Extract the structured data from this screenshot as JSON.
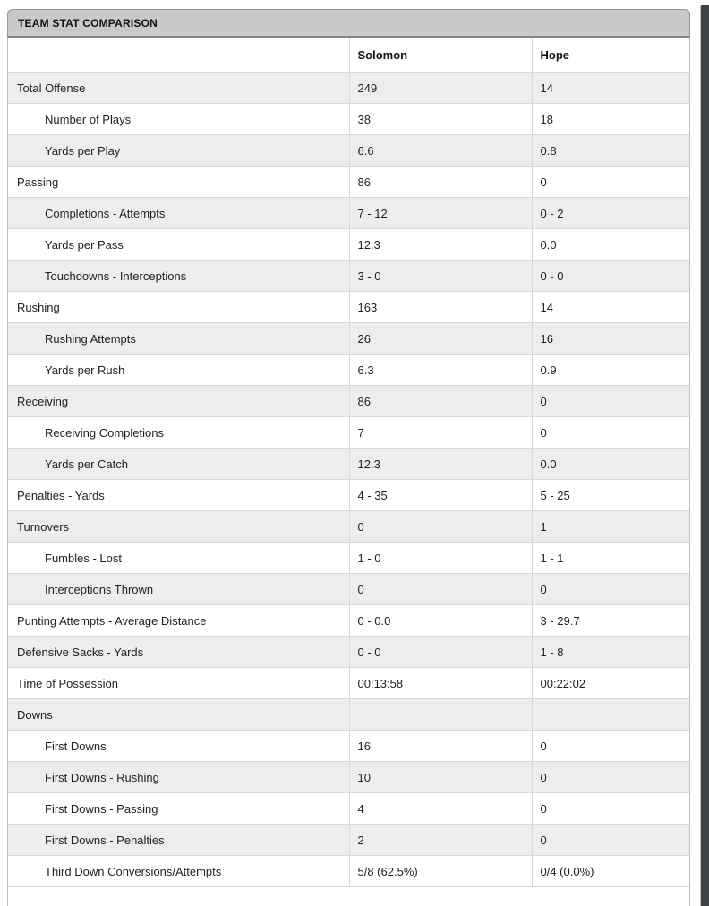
{
  "panel": {
    "title": "TEAM STAT COMPARISON",
    "columns": [
      "Solomon",
      "Hope"
    ],
    "rows": [
      {
        "label": "Total Offense",
        "solomon": "249",
        "hope": "14",
        "indent": false
      },
      {
        "label": "Number of Plays",
        "solomon": "38",
        "hope": "18",
        "indent": true
      },
      {
        "label": "Yards per Play",
        "solomon": "6.6",
        "hope": "0.8",
        "indent": true
      },
      {
        "label": "Passing",
        "solomon": "86",
        "hope": "0",
        "indent": false
      },
      {
        "label": "Completions - Attempts",
        "solomon": "7 - 12",
        "hope": "0 - 2",
        "indent": true
      },
      {
        "label": "Yards per Pass",
        "solomon": "12.3",
        "hope": "0.0",
        "indent": true
      },
      {
        "label": "Touchdowns - Interceptions",
        "solomon": "3 - 0",
        "hope": "0 - 0",
        "indent": true
      },
      {
        "label": "Rushing",
        "solomon": "163",
        "hope": "14",
        "indent": false
      },
      {
        "label": "Rushing Attempts",
        "solomon": "26",
        "hope": "16",
        "indent": true
      },
      {
        "label": "Yards per Rush",
        "solomon": "6.3",
        "hope": "0.9",
        "indent": true
      },
      {
        "label": "Receiving",
        "solomon": "86",
        "hope": "0",
        "indent": false
      },
      {
        "label": "Receiving Completions",
        "solomon": "7",
        "hope": "0",
        "indent": true
      },
      {
        "label": "Yards per Catch",
        "solomon": "12.3",
        "hope": "0.0",
        "indent": true
      },
      {
        "label": "Penalties - Yards",
        "solomon": "4 - 35",
        "hope": "5 - 25",
        "indent": false
      },
      {
        "label": "Turnovers",
        "solomon": "0",
        "hope": "1",
        "indent": false
      },
      {
        "label": "Fumbles - Lost",
        "solomon": "1 - 0",
        "hope": "1 - 1",
        "indent": true
      },
      {
        "label": "Interceptions Thrown",
        "solomon": "0",
        "hope": "0",
        "indent": true
      },
      {
        "label": "Punting Attempts - Average Distance",
        "solomon": "0 - 0.0",
        "hope": "3 - 29.7",
        "indent": false
      },
      {
        "label": "Defensive Sacks - Yards",
        "solomon": "0 - 0",
        "hope": "1 - 8",
        "indent": false
      },
      {
        "label": "Time of Possession",
        "solomon": "00:13:58",
        "hope": "00:22:02",
        "indent": false
      },
      {
        "label": "Downs",
        "solomon": "",
        "hope": "",
        "indent": false
      },
      {
        "label": "First Downs",
        "solomon": "16",
        "hope": "0",
        "indent": true
      },
      {
        "label": "First Downs - Rushing",
        "solomon": "10",
        "hope": "0",
        "indent": true
      },
      {
        "label": "First Downs - Passing",
        "solomon": "4",
        "hope": "0",
        "indent": true
      },
      {
        "label": "First Downs - Penalties",
        "solomon": "2",
        "hope": "0",
        "indent": true
      },
      {
        "label": "Third Down Conversions/Attempts",
        "solomon": "5/8 (62.5%)",
        "hope": "0/4 (0.0%)",
        "indent": true
      }
    ]
  },
  "colors": {
    "header_bg": "#c9c9c9",
    "header_border": "#979797",
    "header_bottom_border": "#828282",
    "row_alt": "#ededed",
    "row_border": "#d8d8d8",
    "outer_border": "#c2c2c2",
    "scrollbar": "#3e4145",
    "text": "#1b1b1b"
  }
}
